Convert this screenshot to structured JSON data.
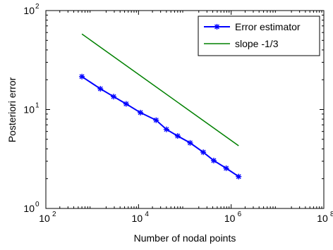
{
  "chart_data": {
    "type": "line",
    "xscale": "log",
    "yscale": "log",
    "xlabel": "Number of nodal points",
    "ylabel": "Posteriori error",
    "xlim": [
      100,
      100000000
    ],
    "ylim": [
      1,
      100
    ],
    "xticks": [
      {
        "value": 100,
        "base": "10",
        "exp": "2"
      },
      {
        "value": 10000,
        "base": "10",
        "exp": "4"
      },
      {
        "value": 1000000,
        "base": "10",
        "exp": "6"
      },
      {
        "value": 100000000,
        "base": "10",
        "exp": "8"
      }
    ],
    "yticks": [
      {
        "value": 1,
        "base": "10",
        "exp": "0"
      },
      {
        "value": 10,
        "base": "10",
        "exp": "1"
      },
      {
        "value": 100,
        "base": "10",
        "exp": "2"
      }
    ],
    "legend_position": "top-right",
    "grid": false,
    "series": [
      {
        "name": "Error estimator",
        "color": "#0000ff",
        "marker": "asterisk",
        "x": [
          600,
          1500,
          2900,
          5400,
          11000,
          24000,
          40000,
          70000,
          130000,
          250000,
          420000,
          780000,
          1450000
        ],
        "y": [
          21.5,
          16.2,
          13.5,
          11.4,
          9.3,
          7.8,
          6.3,
          5.4,
          4.6,
          3.7,
          3.05,
          2.55,
          2.1
        ]
      },
      {
        "name": "slope -1/3",
        "color": "#008000",
        "marker": "none",
        "x": [
          600,
          1450000
        ],
        "y": [
          58,
          4.3
        ]
      }
    ]
  }
}
